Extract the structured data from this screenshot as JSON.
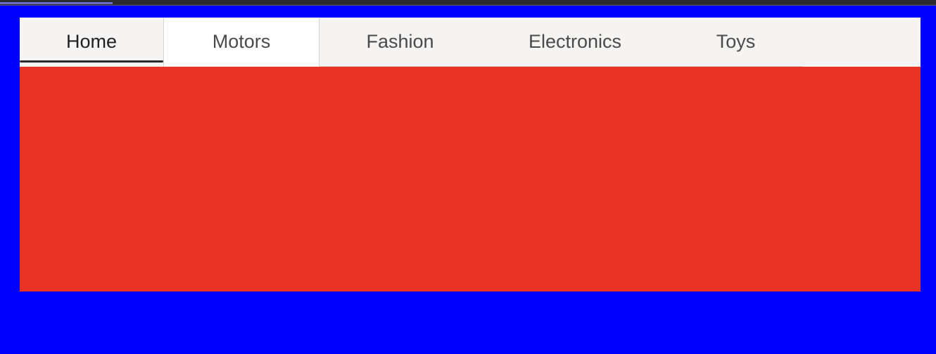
{
  "colors": {
    "page_background": "#0000fe",
    "panel_background": "#e83324",
    "tab_strip_background": "#f5f4f2",
    "active_tab_background": "#ffffff",
    "active_tab_text": "#202124",
    "tab_text": "#4a4a4a",
    "underline": "#2b2b2b",
    "progress": "#6e6ec8"
  },
  "top_progress": {
    "value": 0.12
  },
  "tabs": {
    "selected": "Home",
    "focused": "Motors",
    "items": [
      {
        "label": "Home"
      },
      {
        "label": "Motors"
      },
      {
        "label": "Fashion"
      },
      {
        "label": "Electronics"
      },
      {
        "label": "Toys"
      }
    ]
  }
}
